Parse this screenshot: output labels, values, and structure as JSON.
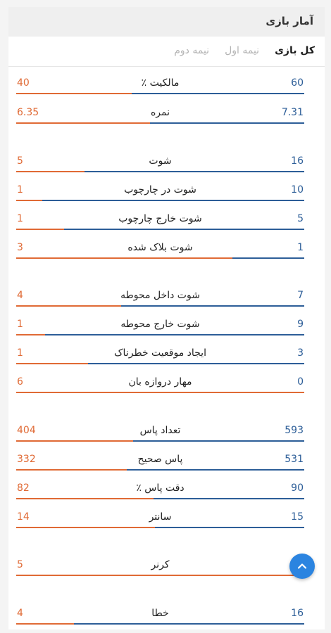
{
  "header": {
    "title": "آمار بازی"
  },
  "tabs": [
    {
      "label": "کل بازی",
      "active": true
    },
    {
      "label": "نیمه اول",
      "active": false
    },
    {
      "label": "نیمه دوم",
      "active": false
    }
  ],
  "colors": {
    "home": "#2d5e98",
    "away": "#e06a35",
    "fab": "#2b84e0"
  },
  "stats": [
    {
      "label": "مالکیت ٪",
      "home": "60",
      "away": "40"
    },
    {
      "label": "نمره",
      "home": "7.31",
      "away": "6.35"
    },
    {
      "label": "شوت",
      "home": "16",
      "away": "5"
    },
    {
      "label": "شوت در چارچوب",
      "home": "10",
      "away": "1"
    },
    {
      "label": "شوت خارج چارچوب",
      "home": "5",
      "away": "1"
    },
    {
      "label": "شوت بلاک شده",
      "home": "1",
      "away": "3"
    },
    {
      "label": "شوت داخل محوطه",
      "home": "7",
      "away": "4"
    },
    {
      "label": "شوت خارج محوطه",
      "home": "9",
      "away": "1"
    },
    {
      "label": "ایجاد موقعیت خطرناک",
      "home": "3",
      "away": "1"
    },
    {
      "label": "مهار دروازه بان",
      "home": "0",
      "away": "6"
    },
    {
      "label": "تعداد پاس",
      "home": "593",
      "away": "404"
    },
    {
      "label": "پاس صحیح",
      "home": "531",
      "away": "332"
    },
    {
      "label": "دقت پاس ٪",
      "home": "90",
      "away": "82"
    },
    {
      "label": "سانتر",
      "home": "15",
      "away": "14"
    },
    {
      "label": "کرنر",
      "home": "",
      "away": "5"
    },
    {
      "label": "خطا",
      "home": "16",
      "away": "4"
    }
  ],
  "scroll_top_button": {
    "icon": "chevron-up-icon"
  }
}
